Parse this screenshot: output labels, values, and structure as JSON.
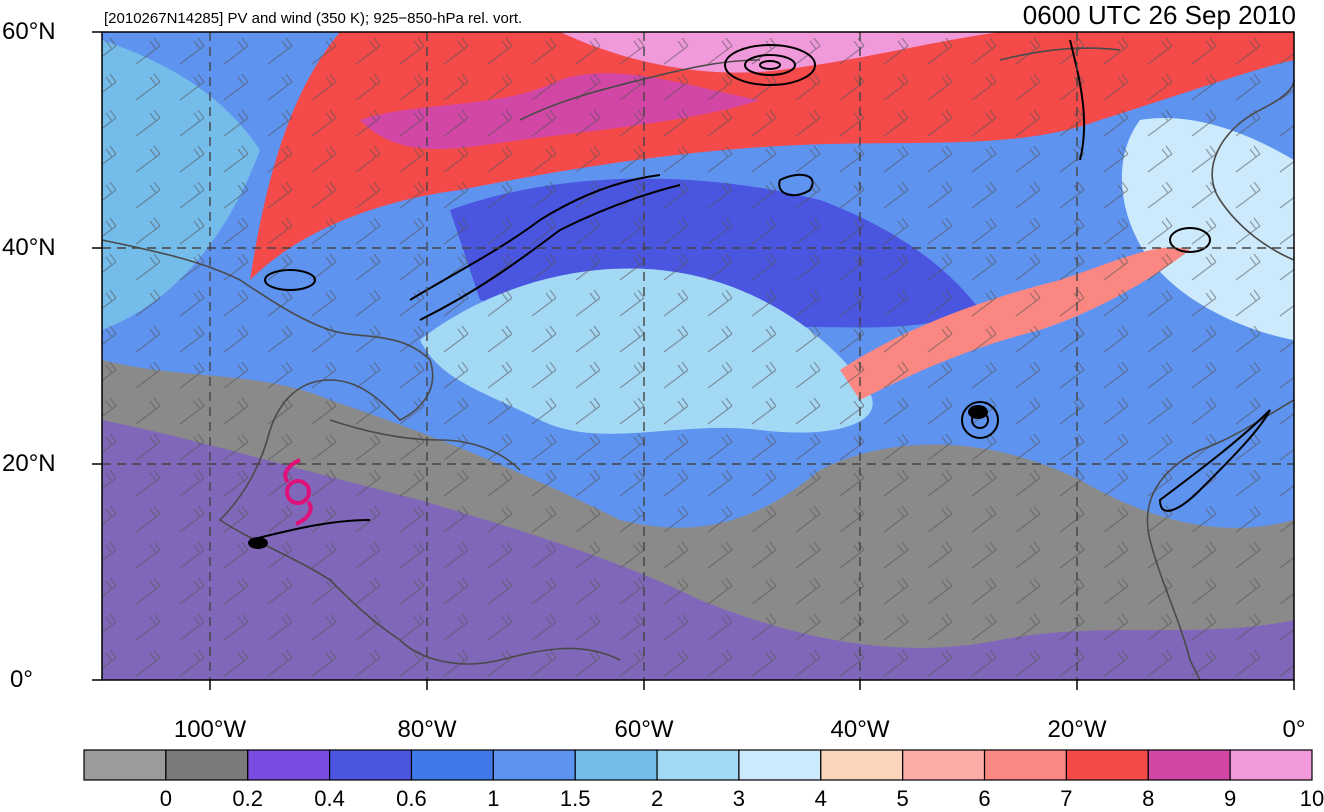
{
  "map": {
    "title_left": "[2010267N14285] PV and wind (350 K); 925−850-hPa rel. vort.",
    "title_right": "0600 UTC 26 Sep 2010",
    "lat_labels": [
      "60°N",
      "40°N",
      "20°N",
      "0°"
    ],
    "lon_labels": [
      "100°W",
      "80°W",
      "60°W",
      "40°W",
      "20°W",
      "0°"
    ],
    "storm_symbol": "tropical-storm-icon",
    "storm_color": "#e0107a",
    "contour_color": "#000000",
    "coastline_color": "#4a4a4a"
  },
  "colorbar": {
    "labels": [
      "0",
      "0.2",
      "0.4",
      "0.6",
      "1",
      "1.5",
      "2",
      "3",
      "4",
      "5",
      "6",
      "7",
      "8",
      "9",
      "10"
    ],
    "colors": [
      "#9b9b9b",
      "#7a7a7a",
      "#7a4be0",
      "#4a55e0",
      "#3f79ea",
      "#5e93f0",
      "#74bdeb",
      "#a4d9f5",
      "#cdeafc",
      "#fbd4bc",
      "#fbaca6",
      "#fb8783",
      "#f44a4a",
      "#d246a6",
      "#f099db"
    ]
  }
}
